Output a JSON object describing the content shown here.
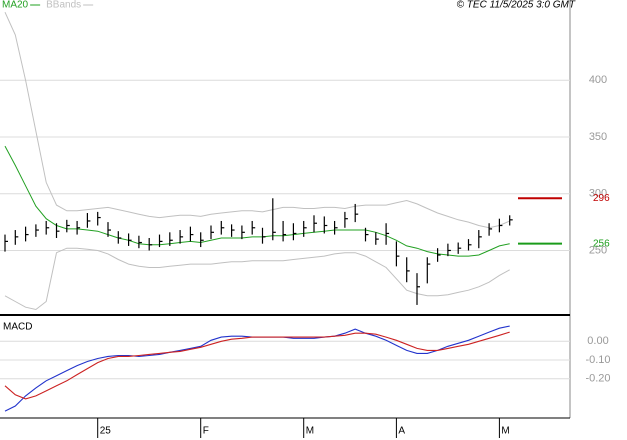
{
  "chart_data": [
    {
      "type": "ohlc",
      "title": "© TEC 11/5/2025 3:0 GMT",
      "color": "#000000",
      "high": [
        264,
        268,
        271,
        273,
        276,
        274,
        277,
        276,
        283,
        284,
        275,
        267,
        265,
        263,
        261,
        264,
        266,
        268,
        271,
        266,
        272,
        276,
        273,
        272,
        276,
        270,
        296,
        276,
        274,
        276,
        281,
        280,
        276,
        284,
        291,
        270,
        266,
        274,
        258,
        244,
        230,
        244,
        252,
        256,
        257,
        260,
        268,
        274,
        278,
        281
      ],
      "low": [
        249,
        255,
        258,
        262,
        264,
        261,
        266,
        264,
        270,
        272,
        262,
        256,
        254,
        252,
        250,
        253,
        254,
        256,
        258,
        253,
        260,
        264,
        262,
        260,
        264,
        256,
        259,
        258,
        259,
        262,
        266,
        265,
        264,
        270,
        275,
        258,
        255,
        255,
        236,
        222,
        202,
        221,
        240,
        245,
        247,
        250,
        252,
        263,
        266,
        272
      ],
      "close": [
        258,
        262,
        264,
        268,
        270,
        267,
        272,
        270,
        276,
        279,
        268,
        261,
        259,
        257,
        255,
        258,
        259,
        262,
        264,
        259,
        266,
        270,
        268,
        266,
        270,
        262,
        266,
        264,
        265,
        270,
        274,
        272,
        270,
        278,
        282,
        264,
        260,
        265,
        245,
        232,
        218,
        238,
        246,
        250,
        252,
        255,
        262,
        269,
        272,
        277
      ],
      "overlays": [
        {
          "name": "MA20",
          "color": "#22a022",
          "values": [
            342,
            325,
            307,
            289,
            278,
            272,
            269,
            269,
            268,
            267,
            264,
            261,
            259,
            256,
            255,
            255,
            256,
            257,
            258,
            257,
            259,
            261,
            261,
            261,
            262,
            262,
            263,
            263,
            264,
            265,
            266,
            267,
            268,
            268,
            268,
            268,
            266,
            263,
            259,
            254,
            252,
            249,
            247,
            246,
            245,
            245,
            246,
            250,
            254,
            256
          ]
        },
        {
          "name": "BBands",
          "color": "#c0c0c0",
          "upper": [
            460,
            440,
            400,
            355,
            310,
            290,
            285,
            285,
            286,
            287,
            288,
            286,
            284,
            282,
            280,
            279,
            280,
            281,
            281,
            280,
            282,
            283,
            284,
            285,
            285,
            284,
            286,
            288,
            288,
            287,
            287,
            288,
            288,
            287,
            289,
            290,
            290,
            290,
            292,
            294,
            291,
            287,
            283,
            280,
            277,
            275,
            272,
            270,
            272,
            276
          ],
          "lower": [
            210,
            205,
            200,
            198,
            205,
            248,
            252,
            252,
            251,
            250,
            247,
            242,
            238,
            236,
            235,
            235,
            236,
            237,
            238,
            238,
            238,
            239,
            240,
            240,
            241,
            241,
            241,
            241,
            242,
            243,
            244,
            245,
            247,
            248,
            248,
            245,
            240,
            235,
            225,
            215,
            212,
            210,
            210,
            211,
            213,
            215,
            218,
            222,
            228,
            233
          ]
        }
      ],
      "markers": [
        {
          "value": 296,
          "color": "#c00000"
        },
        {
          "value": 256,
          "color": "#1a9c1a"
        }
      ],
      "ylim": [
        194,
        469
      ],
      "yticks": [
        250,
        300,
        350,
        400
      ],
      "grid": true
    },
    {
      "type": "line",
      "title": "MACD",
      "categories": [
        null,
        null,
        null,
        null,
        null,
        null,
        null,
        null,
        null,
        "25",
        null,
        null,
        null,
        null,
        null,
        null,
        null,
        null,
        null,
        "F",
        null,
        null,
        null,
        null,
        null,
        null,
        null,
        null,
        null,
        "M",
        null,
        null,
        null,
        null,
        null,
        null,
        null,
        null,
        "A",
        null,
        null,
        null,
        null,
        null,
        null,
        null,
        null,
        null,
        "M",
        null
      ],
      "series": [
        {
          "color": "#2233cc",
          "values": [
            -0.373,
            -0.346,
            -0.292,
            -0.249,
            -0.211,
            -0.184,
            -0.157,
            -0.13,
            -0.108,
            -0.092,
            -0.081,
            -0.076,
            -0.076,
            -0.081,
            -0.076,
            -0.07,
            -0.059,
            -0.049,
            -0.038,
            -0.027,
            0.005,
            0.022,
            0.027,
            0.027,
            0.022,
            0.022,
            0.022,
            0.022,
            0.016,
            0.016,
            0.016,
            0.022,
            0.027,
            0.043,
            0.065,
            0.043,
            0.027,
            0.005,
            -0.022,
            -0.049,
            -0.065,
            -0.065,
            -0.049,
            -0.027,
            -0.011,
            0.005,
            0.027,
            0.049,
            0.07,
            0.081
          ]
        },
        {
          "color": "#cc2222",
          "values": [
            -0.238,
            -0.286,
            -0.308,
            -0.292,
            -0.265,
            -0.238,
            -0.211,
            -0.178,
            -0.146,
            -0.114,
            -0.092,
            -0.081,
            -0.081,
            -0.076,
            -0.07,
            -0.065,
            -0.059,
            -0.054,
            -0.043,
            -0.032,
            -0.016,
            0,
            0.011,
            0.016,
            0.022,
            0.022,
            0.022,
            0.022,
            0.022,
            0.022,
            0.022,
            0.022,
            0.027,
            0.032,
            0.043,
            0.043,
            0.038,
            0.022,
            0.005,
            -0.016,
            -0.038,
            -0.049,
            -0.049,
            -0.038,
            -0.027,
            -0.016,
            0,
            0.016,
            0.032,
            0.049
          ]
        }
      ],
      "ylim": [
        -0.41,
        0.135
      ],
      "yticks": [
        {
          "value": 0,
          "label": "0.00"
        },
        {
          "value": -0.1,
          "label": "-0.10"
        },
        {
          "value": -0.2,
          "label": "-0.20"
        }
      ],
      "grid": true
    }
  ]
}
